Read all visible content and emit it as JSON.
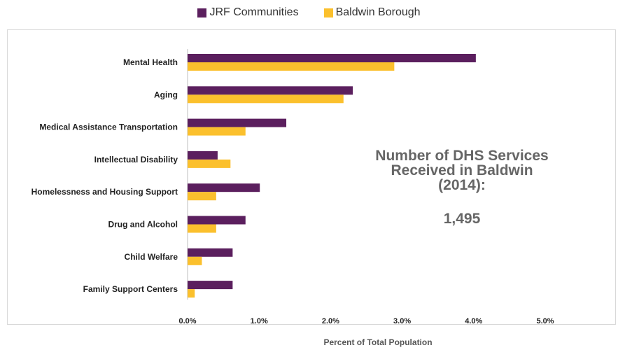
{
  "chart_data": {
    "type": "bar",
    "orientation": "horizontal",
    "title": "",
    "xlabel": "Percent of Total Population",
    "ylabel": "",
    "categories": [
      "Mental Health",
      "Aging",
      "Medical Assistance Transportation",
      "Intellectual Disability",
      "Homelessness and Housing Support",
      "Drug and Alcohol",
      "Child Welfare",
      "Family Support Centers"
    ],
    "series": [
      {
        "name": "JRF Communities",
        "color": "#5b1f5e",
        "values": [
          4.03,
          2.31,
          1.38,
          0.42,
          1.01,
          0.81,
          0.63,
          0.63
        ]
      },
      {
        "name": "Baldwin Borough",
        "color": "#fbc02d",
        "values": [
          2.89,
          2.18,
          0.81,
          0.6,
          0.4,
          0.4,
          0.2,
          0.1
        ]
      }
    ],
    "xlim": [
      0,
      5
    ],
    "xticks": [
      "0.0%",
      "1.0%",
      "2.0%",
      "3.0%",
      "4.0%",
      "5.0%"
    ],
    "grid": false,
    "legend_position": "top"
  },
  "callout": {
    "heading": "Number of DHS Services\nReceived in Baldwin\n(2014):",
    "value": "1,495"
  }
}
